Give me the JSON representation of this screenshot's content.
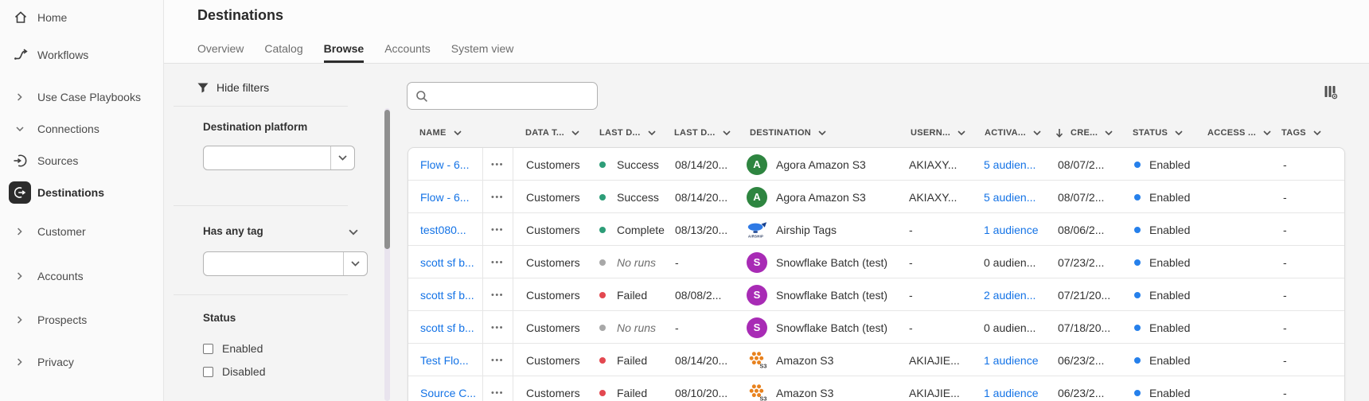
{
  "sidebar": {
    "items": [
      {
        "label": "Home",
        "icon": "home"
      },
      {
        "label": "Workflows",
        "icon": "workflows"
      },
      {
        "label": "Use Case Playbooks",
        "icon": "chevron-right"
      },
      {
        "label": "Connections",
        "icon": "chevron-down"
      },
      {
        "label": "Sources",
        "icon": "sources"
      },
      {
        "label": "Destinations",
        "icon": "destinations",
        "selected": true
      },
      {
        "label": "Customer",
        "icon": "chevron-right"
      },
      {
        "label": "Accounts",
        "icon": "chevron-right"
      },
      {
        "label": "Prospects",
        "icon": "chevron-right"
      },
      {
        "label": "Privacy",
        "icon": "chevron-right"
      }
    ]
  },
  "header": {
    "title": "Destinations",
    "tabs": [
      {
        "label": "Overview",
        "active": false
      },
      {
        "label": "Catalog",
        "active": false
      },
      {
        "label": "Browse",
        "active": true
      },
      {
        "label": "Accounts",
        "active": false
      },
      {
        "label": "System view",
        "active": false
      }
    ]
  },
  "filters": {
    "toggle_label": "Hide filters",
    "destination_platform": {
      "label": "Destination platform",
      "value": ""
    },
    "has_any_tag": {
      "label": "Has any tag",
      "value": ""
    },
    "status": {
      "label": "Status",
      "options": [
        {
          "label": "Enabled",
          "checked": false
        },
        {
          "label": "Disabled",
          "checked": false
        }
      ]
    }
  },
  "toolbar": {
    "search_value": "",
    "search_placeholder": ""
  },
  "icons": {
    "more_actions": "•••"
  },
  "colors": {
    "link_blue": "#1473e6",
    "status_enabled_blue": "#2680eb",
    "run_success_green": "#2d9d78",
    "run_failed_red": "#e34850",
    "run_noruns_gray": "#a8a8a8",
    "agora_green": "#2e8540",
    "snowflake_purple": "#a82bb5",
    "s3_orange": "#e8821e"
  },
  "table": {
    "columns": [
      {
        "label": "NAME"
      },
      {
        "label": "DATA T..."
      },
      {
        "label": "LAST D..."
      },
      {
        "label": "LAST D..."
      },
      {
        "label": "DESTINATION"
      },
      {
        "label": "USERN..."
      },
      {
        "label": "ACTIVA..."
      },
      {
        "label": "CRE...",
        "sorted": "descending"
      },
      {
        "label": "STATUS"
      },
      {
        "label": "ACCESS ..."
      },
      {
        "label": "TAGS"
      }
    ],
    "rows": [
      {
        "name": "Flow - 6...",
        "data_type": "Customers",
        "last_run": {
          "status": "Success",
          "key": "success"
        },
        "last_run_date": "08/14/20...",
        "destination": {
          "label": "Agora Amazon S3",
          "variant": "agora",
          "badge": "A"
        },
        "username": "AKIAXY...",
        "activation": {
          "label": "5 audien...",
          "link": true
        },
        "created": "08/07/2...",
        "status": {
          "label": "Enabled",
          "key": "enabled"
        },
        "access": "",
        "tags": "-"
      },
      {
        "name": "Flow - 6...",
        "data_type": "Customers",
        "last_run": {
          "status": "Success",
          "key": "success"
        },
        "last_run_date": "08/14/20...",
        "destination": {
          "label": "Agora Amazon S3",
          "variant": "agora",
          "badge": "A"
        },
        "username": "AKIAXY...",
        "activation": {
          "label": "5 audien...",
          "link": true
        },
        "created": "08/07/2...",
        "status": {
          "label": "Enabled",
          "key": "enabled"
        },
        "access": "",
        "tags": "-"
      },
      {
        "name": "test080...",
        "data_type": "Customers",
        "last_run": {
          "status": "Complete",
          "key": "complete"
        },
        "last_run_date": "08/13/20...",
        "destination": {
          "label": "Airship Tags",
          "variant": "airship",
          "badge": ""
        },
        "username": "-",
        "activation": {
          "label": "1 audience",
          "link": true
        },
        "created": "08/06/2...",
        "status": {
          "label": "Enabled",
          "key": "enabled"
        },
        "access": "",
        "tags": "-"
      },
      {
        "name": "scott sf b...",
        "data_type": "Customers",
        "last_run": {
          "status": "No runs",
          "key": "noruns"
        },
        "last_run_date": "-",
        "destination": {
          "label": "Snowflake Batch (test)",
          "variant": "snowflake",
          "badge": "S"
        },
        "username": "-",
        "activation": {
          "label": "0 audien...",
          "link": false
        },
        "created": "07/23/2...",
        "status": {
          "label": "Enabled",
          "key": "enabled"
        },
        "access": "",
        "tags": "-"
      },
      {
        "name": "scott sf b...",
        "data_type": "Customers",
        "last_run": {
          "status": "Failed",
          "key": "failed"
        },
        "last_run_date": "08/08/2...",
        "destination": {
          "label": "Snowflake Batch (test)",
          "variant": "snowflake",
          "badge": "S"
        },
        "username": "-",
        "activation": {
          "label": "2 audien...",
          "link": true
        },
        "created": "07/21/20...",
        "status": {
          "label": "Enabled",
          "key": "enabled"
        },
        "access": "",
        "tags": "-"
      },
      {
        "name": "scott sf b...",
        "data_type": "Customers",
        "last_run": {
          "status": "No runs",
          "key": "noruns"
        },
        "last_run_date": "-",
        "destination": {
          "label": "Snowflake Batch (test)",
          "variant": "snowflake",
          "badge": "S"
        },
        "username": "-",
        "activation": {
          "label": "0 audien...",
          "link": false
        },
        "created": "07/18/20...",
        "status": {
          "label": "Enabled",
          "key": "enabled"
        },
        "access": "",
        "tags": "-"
      },
      {
        "name": "Test Flo...",
        "data_type": "Customers",
        "last_run": {
          "status": "Failed",
          "key": "failed"
        },
        "last_run_date": "08/14/20...",
        "destination": {
          "label": "Amazon S3",
          "variant": "s3",
          "badge": ""
        },
        "username": "AKIAJIE...",
        "activation": {
          "label": "1 audience",
          "link": true
        },
        "created": "06/23/2...",
        "status": {
          "label": "Enabled",
          "key": "enabled"
        },
        "access": "",
        "tags": "-"
      },
      {
        "name": "Source C...",
        "data_type": "Customers",
        "last_run": {
          "status": "Failed",
          "key": "failed"
        },
        "last_run_date": "08/10/20...",
        "destination": {
          "label": "Amazon S3",
          "variant": "s3",
          "badge": ""
        },
        "username": "AKIAJIE...",
        "activation": {
          "label": "1 audience",
          "link": true
        },
        "created": "06/23/2...",
        "status": {
          "label": "Enabled",
          "key": "enabled"
        },
        "access": "",
        "tags": "-"
      }
    ]
  }
}
